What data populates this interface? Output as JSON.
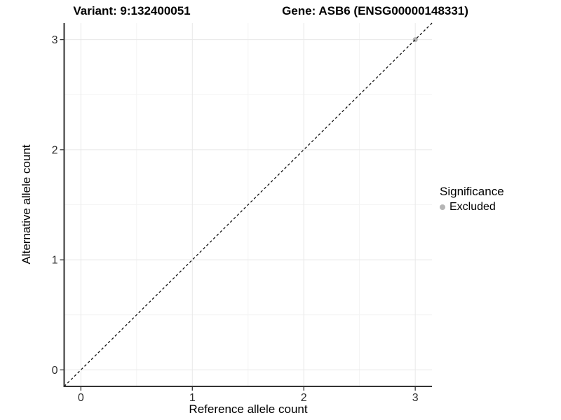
{
  "titles": {
    "variant": "Variant: 9:132400051",
    "gene": "Gene: ASB6 (ENSG00000148331)"
  },
  "axes": {
    "x_label": "Reference allele count",
    "y_label": "Alternative allele count"
  },
  "legend": {
    "title": "Significance",
    "items": [
      {
        "label": "Excluded",
        "color": "#b5b5b5"
      }
    ]
  },
  "colors": {
    "background": "#ffffff",
    "grid_major": "#e8e8e8",
    "grid_minor": "#f3f3f3",
    "axis_line": "#333333",
    "tick_mark": "#333333",
    "tick_text": "#303030",
    "reference_line": "#111111",
    "point": "#b5b5b5"
  },
  "chart_data": {
    "type": "scatter",
    "title": "Variant: 9:132400051 | Gene: ASB6 (ENSG00000148331)",
    "xlabel": "Reference allele count",
    "ylabel": "Alternative allele count",
    "xlim": [
      -0.15,
      3.15
    ],
    "ylim": [
      -0.15,
      3.15
    ],
    "x_ticks": [
      0,
      1,
      2,
      3
    ],
    "y_ticks": [
      0,
      1,
      2,
      3
    ],
    "x_minor_ticks": [
      0.5,
      1.5,
      2.5
    ],
    "y_minor_ticks": [
      0.5,
      1.5,
      2.5
    ],
    "grid": "major+minor",
    "legend_position": "right",
    "series": [
      {
        "name": "Excluded",
        "color": "#b5b5b5",
        "points": [
          {
            "x": 3,
            "y": 3
          }
        ]
      }
    ],
    "reference_line": {
      "type": "abline",
      "slope": 1,
      "intercept": 0,
      "style": "dashed",
      "color": "#111111"
    }
  }
}
